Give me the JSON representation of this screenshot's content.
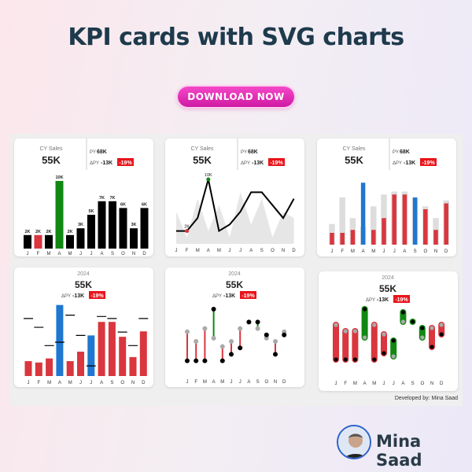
{
  "header": {
    "title": "KPI cards with SVG charts"
  },
  "download_button": {
    "label": "DOWNLOAD NOW"
  },
  "kpi": {
    "cy_label": "CY Sales",
    "cy_value": "55K",
    "py_label": "PY",
    "py_value": "68K",
    "delta_label": "ΔPY",
    "delta_value": "-13K",
    "delta_pct": "-19%",
    "year": "2024"
  },
  "colors": {
    "red": "#d9363e",
    "green": "#118811",
    "blue": "#1f77d0",
    "black": "#000000",
    "grey": "#dddddd",
    "delta_bg": "#e8141b",
    "brand_pink": "#e62fb8"
  },
  "chart_data": [
    {
      "type": "bar",
      "title": "",
      "categories": [
        "J",
        "F",
        "M",
        "A",
        "M",
        "J",
        "J",
        "A",
        "S",
        "O",
        "N",
        "D"
      ],
      "values": [
        2,
        2,
        2,
        10,
        2,
        3,
        5,
        7,
        7,
        6,
        3,
        6
      ],
      "data_labels": [
        "2K",
        "2K",
        "2K",
        "10K",
        "2K",
        "3K",
        "5K",
        "7K",
        "7K",
        "6K",
        "3K",
        "6K"
      ],
      "highlight": {
        "max": "green",
        "min": "red",
        "other": "black"
      }
    },
    {
      "type": "line",
      "title": "",
      "categories": [
        "J",
        "F",
        "M",
        "A",
        "M",
        "J",
        "J",
        "A",
        "S",
        "O",
        "N",
        "D"
      ],
      "series": [
        {
          "values": [
            2,
            2,
            4,
            10,
            2,
            3,
            5,
            8,
            8,
            6,
            4,
            7
          ]
        },
        {
          "values": [
            5,
            1,
            7,
            2,
            6,
            1,
            8,
            3,
            7,
            1,
            5,
            4
          ]
        }
      ],
      "data_labels": {
        "min": "2K",
        "max": "10K"
      }
    },
    {
      "type": "bar",
      "title": "",
      "categories": [
        "J",
        "F",
        "M",
        "A",
        "M",
        "J",
        "J",
        "A",
        "S",
        "O",
        "N",
        "D"
      ],
      "series": [
        {
          "values": [
            3.5,
            8.0,
            4.5,
            3.0,
            6.5,
            8.5,
            9.0,
            9.0,
            8.0,
            6.5,
            4.5,
            7.5
          ]
        },
        {
          "values": [
            2.0,
            2.0,
            2.5,
            10.5,
            2.5,
            4.5,
            8.5,
            8.5,
            8.0,
            6.0,
            2.5,
            7.0
          ]
        }
      ]
    },
    {
      "type": "bar",
      "title": "",
      "categories": [
        "J",
        "F",
        "M",
        "A",
        "M",
        "J",
        "J",
        "A",
        "S",
        "O",
        "N",
        "D"
      ],
      "series": [
        {
          "values": [
            2.2,
            2.0,
            2.6,
            10.5,
            2.2,
            3.6,
            6.0,
            8.0,
            8.0,
            5.8,
            2.8,
            6.6
          ]
        },
        {
          "values": [
            8.5,
            7.2,
            4.5,
            5.0,
            9.0,
            6.0,
            1.5,
            8.8,
            8.5,
            6.5,
            4.5,
            8.5
          ]
        }
      ]
    },
    {
      "type": "scatter",
      "title": "",
      "categories": [
        "J",
        "F",
        "M",
        "A",
        "M",
        "J",
        "J",
        "A",
        "S",
        "O",
        "N",
        "D"
      ],
      "series": [
        {
          "values": [
            2.0,
            2.0,
            2.0,
            10.0,
            2.0,
            3.0,
            4.0,
            8.0,
            8.0,
            6.0,
            3.0,
            6.0
          ]
        },
        {
          "values": [
            6.5,
            5.0,
            7.0,
            5.5,
            4.2,
            5.0,
            7.0,
            8.0,
            7.0,
            5.5,
            5.0,
            6.5
          ]
        }
      ]
    },
    {
      "type": "scatter",
      "title": "",
      "categories": [
        "J",
        "F",
        "M",
        "A",
        "M",
        "J",
        "J",
        "A",
        "S",
        "O",
        "N",
        "D"
      ],
      "series": [
        {
          "values": [
            2.0,
            2.0,
            2.0,
            10.0,
            2.0,
            3.0,
            5.0,
            9.5,
            8.0,
            7.0,
            4.0,
            6.0
          ]
        },
        {
          "values": [
            7.5,
            6.5,
            6.5,
            5.5,
            7.5,
            6.0,
            2.5,
            8.0,
            8.0,
            5.5,
            7.0,
            7.5
          ]
        }
      ]
    }
  ],
  "footer": {
    "developed_by": "Developed by: Mina Saad",
    "author_name": "Mina Saad"
  }
}
